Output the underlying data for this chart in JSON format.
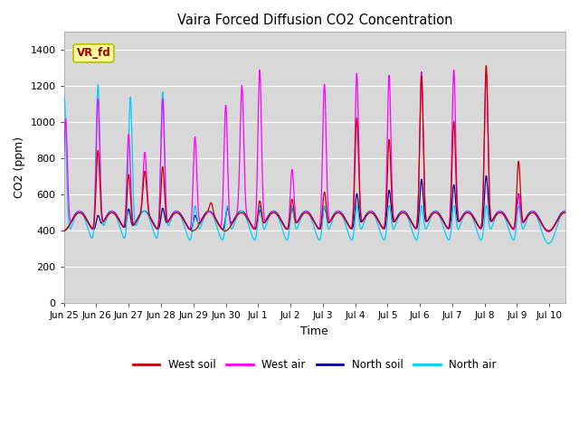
{
  "title": "Vaira Forced Diffusion CO2 Concentration",
  "xlabel": "Time",
  "ylabel": "CO2 (ppm)",
  "ylim": [
    0,
    1500
  ],
  "yticks": [
    0,
    200,
    400,
    600,
    800,
    1000,
    1200,
    1400
  ],
  "tick_labels": [
    "Jun 25",
    "Jun 26",
    "Jun 27",
    "Jun 28",
    "Jun 29",
    "Jun 30",
    "Jul 1",
    "Jul 2",
    "Jul 3",
    "Jul 4",
    "Jul 5",
    "Jul 6",
    "Jul 7",
    "Jul 8",
    "Jul 9",
    "Jul 10"
  ],
  "legend_labels": [
    "West soil",
    "West air",
    "North soil",
    "North air"
  ],
  "legend_colors": [
    "#cc0000",
    "#ff00ff",
    "#000099",
    "#00ccff"
  ],
  "label_box_text": "VR_fd",
  "label_box_bg": "#ffff99",
  "label_box_fg": "#990000",
  "plot_bg": "#d8d8d8",
  "fig_bg": "#ffffff",
  "xlim": [
    0,
    15.5
  ],
  "n_points": 3000
}
